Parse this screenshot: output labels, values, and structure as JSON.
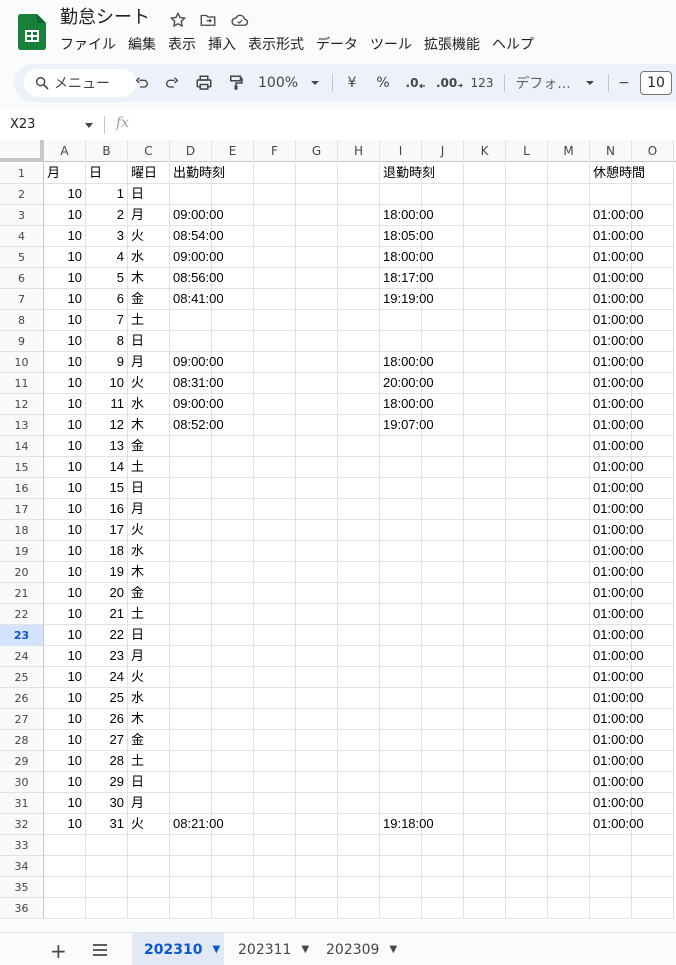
{
  "app": {
    "doc_title": "勤怠シート",
    "brand_color": "#188038"
  },
  "menu": [
    "ファイル",
    "編集",
    "表示",
    "挿入",
    "表示形式",
    "データ",
    "ツール",
    "拡張機能",
    "ヘルプ"
  ],
  "toolbar": {
    "menu_search": "メニュー",
    "zoom": "100%",
    "currency": "¥",
    "percent": "%",
    "dec_decrease": ".0",
    "dec_increase": ".00",
    "number_format": "123",
    "font": "デフォ...",
    "font_size": "10",
    "minus": "−"
  },
  "formula_bar": {
    "name_box": "X23",
    "fx": "fx",
    "value": ""
  },
  "columns": [
    "A",
    "B",
    "C",
    "D",
    "E",
    "F",
    "G",
    "H",
    "I",
    "J",
    "K",
    "L",
    "M",
    "N",
    "O"
  ],
  "selected_row": 23,
  "header_row": {
    "month": "月",
    "day": "日",
    "weekday": "曜日",
    "clock_in": "出勤時刻",
    "clock_out": "退勤時刻",
    "break": "休憩時間"
  },
  "rows": [
    {
      "month": "10",
      "day": "1",
      "weekday": "日",
      "clock_in": "",
      "clock_out": "",
      "break": ""
    },
    {
      "month": "10",
      "day": "2",
      "weekday": "月",
      "clock_in": "09:00:00",
      "clock_out": "18:00:00",
      "break": "01:00:00"
    },
    {
      "month": "10",
      "day": "3",
      "weekday": "火",
      "clock_in": "08:54:00",
      "clock_out": "18:05:00",
      "break": "01:00:00"
    },
    {
      "month": "10",
      "day": "4",
      "weekday": "水",
      "clock_in": "09:00:00",
      "clock_out": "18:00:00",
      "break": "01:00:00"
    },
    {
      "month": "10",
      "day": "5",
      "weekday": "木",
      "clock_in": "08:56:00",
      "clock_out": "18:17:00",
      "break": "01:00:00"
    },
    {
      "month": "10",
      "day": "6",
      "weekday": "金",
      "clock_in": "08:41:00",
      "clock_out": "19:19:00",
      "break": "01:00:00"
    },
    {
      "month": "10",
      "day": "7",
      "weekday": "土",
      "clock_in": "",
      "clock_out": "",
      "break": "01:00:00"
    },
    {
      "month": "10",
      "day": "8",
      "weekday": "日",
      "clock_in": "",
      "clock_out": "",
      "break": "01:00:00"
    },
    {
      "month": "10",
      "day": "9",
      "weekday": "月",
      "clock_in": "09:00:00",
      "clock_out": "18:00:00",
      "break": "01:00:00"
    },
    {
      "month": "10",
      "day": "10",
      "weekday": "火",
      "clock_in": "08:31:00",
      "clock_out": "20:00:00",
      "break": "01:00:00"
    },
    {
      "month": "10",
      "day": "11",
      "weekday": "水",
      "clock_in": "09:00:00",
      "clock_out": "18:00:00",
      "break": "01:00:00"
    },
    {
      "month": "10",
      "day": "12",
      "weekday": "木",
      "clock_in": "08:52:00",
      "clock_out": "19:07:00",
      "break": "01:00:00"
    },
    {
      "month": "10",
      "day": "13",
      "weekday": "金",
      "clock_in": "",
      "clock_out": "",
      "break": "01:00:00"
    },
    {
      "month": "10",
      "day": "14",
      "weekday": "土",
      "clock_in": "",
      "clock_out": "",
      "break": "01:00:00"
    },
    {
      "month": "10",
      "day": "15",
      "weekday": "日",
      "clock_in": "",
      "clock_out": "",
      "break": "01:00:00"
    },
    {
      "month": "10",
      "day": "16",
      "weekday": "月",
      "clock_in": "",
      "clock_out": "",
      "break": "01:00:00"
    },
    {
      "month": "10",
      "day": "17",
      "weekday": "火",
      "clock_in": "",
      "clock_out": "",
      "break": "01:00:00"
    },
    {
      "month": "10",
      "day": "18",
      "weekday": "水",
      "clock_in": "",
      "clock_out": "",
      "break": "01:00:00"
    },
    {
      "month": "10",
      "day": "19",
      "weekday": "木",
      "clock_in": "",
      "clock_out": "",
      "break": "01:00:00"
    },
    {
      "month": "10",
      "day": "20",
      "weekday": "金",
      "clock_in": "",
      "clock_out": "",
      "break": "01:00:00"
    },
    {
      "month": "10",
      "day": "21",
      "weekday": "土",
      "clock_in": "",
      "clock_out": "",
      "break": "01:00:00"
    },
    {
      "month": "10",
      "day": "22",
      "weekday": "日",
      "clock_in": "",
      "clock_out": "",
      "break": "01:00:00"
    },
    {
      "month": "10",
      "day": "23",
      "weekday": "月",
      "clock_in": "",
      "clock_out": "",
      "break": "01:00:00"
    },
    {
      "month": "10",
      "day": "24",
      "weekday": "火",
      "clock_in": "",
      "clock_out": "",
      "break": "01:00:00"
    },
    {
      "month": "10",
      "day": "25",
      "weekday": "水",
      "clock_in": "",
      "clock_out": "",
      "break": "01:00:00"
    },
    {
      "month": "10",
      "day": "26",
      "weekday": "木",
      "clock_in": "",
      "clock_out": "",
      "break": "01:00:00"
    },
    {
      "month": "10",
      "day": "27",
      "weekday": "金",
      "clock_in": "",
      "clock_out": "",
      "break": "01:00:00"
    },
    {
      "month": "10",
      "day": "28",
      "weekday": "土",
      "clock_in": "",
      "clock_out": "",
      "break": "01:00:00"
    },
    {
      "month": "10",
      "day": "29",
      "weekday": "日",
      "clock_in": "",
      "clock_out": "",
      "break": "01:00:00"
    },
    {
      "month": "10",
      "day": "30",
      "weekday": "月",
      "clock_in": "",
      "clock_out": "",
      "break": "01:00:00"
    },
    {
      "month": "10",
      "day": "31",
      "weekday": "火",
      "clock_in": "08:21:00",
      "clock_out": "19:18:00",
      "break": "01:00:00"
    }
  ],
  "empty_row_numbers": [
    "33",
    "34",
    "35",
    "36"
  ],
  "sheets": [
    {
      "name": "202310",
      "active": true
    },
    {
      "name": "202311",
      "active": false
    },
    {
      "name": "202309",
      "active": false
    }
  ]
}
